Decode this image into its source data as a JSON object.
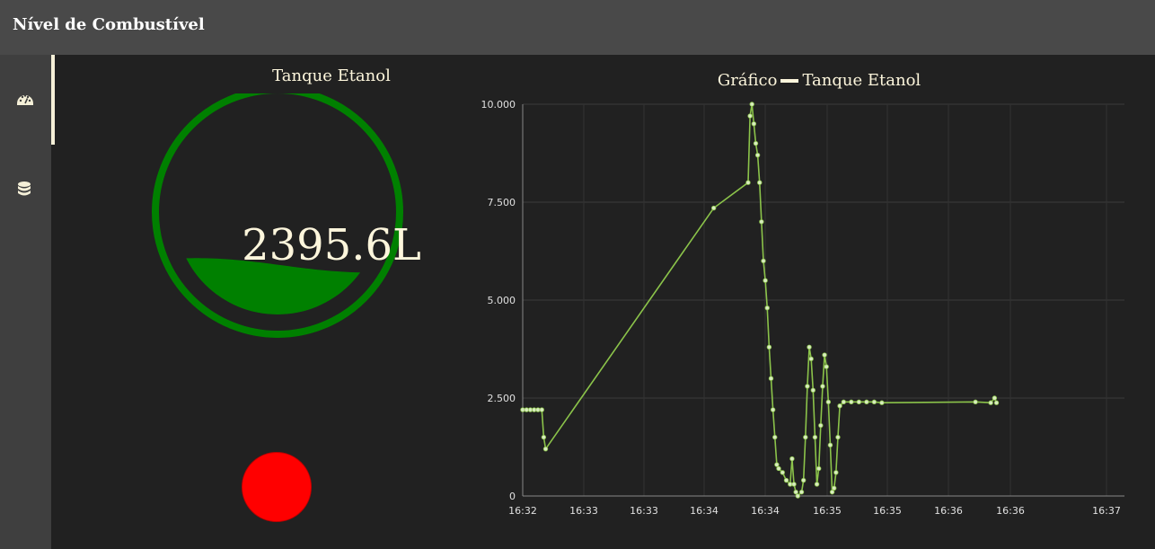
{
  "app": {
    "title": "Nível de Combustível"
  },
  "sidebar": {
    "items": [
      {
        "icon": "dashboard-gauge-icon",
        "active": true
      },
      {
        "icon": "database-icon",
        "active": false
      }
    ]
  },
  "gauge": {
    "title": "Tanque Etanol",
    "value_text": "2395.6L",
    "level_fraction": 0.24,
    "color": "#008000"
  },
  "status": {
    "color": "#ff0000"
  },
  "chart": {
    "title": "Gráfico",
    "legend": "Tanque Etanol"
  },
  "chart_data": {
    "type": "line",
    "series": [
      {
        "name": "Tanque Etanol",
        "color": "#8bc34a",
        "points": [
          [
            "16:32:00",
            2200
          ],
          [
            "16:32:02",
            2200
          ],
          [
            "16:32:04",
            2200
          ],
          [
            "16:32:06",
            2200
          ],
          [
            "16:32:08",
            2200
          ],
          [
            "16:32:10",
            2200
          ],
          [
            "16:32:11",
            1500
          ],
          [
            "16:32:12",
            1200
          ],
          [
            "16:33:40",
            7350
          ],
          [
            "16:33:58",
            8000
          ],
          [
            "16:33:59",
            9700
          ],
          [
            "16:34:00",
            10000
          ],
          [
            "16:34:01",
            9500
          ],
          [
            "16:34:02",
            9000
          ],
          [
            "16:34:03",
            8700
          ],
          [
            "16:34:04",
            8000
          ],
          [
            "16:34:05",
            7000
          ],
          [
            "16:34:06",
            6000
          ],
          [
            "16:34:07",
            5500
          ],
          [
            "16:34:08",
            4800
          ],
          [
            "16:34:09",
            3800
          ],
          [
            "16:34:10",
            3000
          ],
          [
            "16:34:11",
            2200
          ],
          [
            "16:34:12",
            1500
          ],
          [
            "16:34:13",
            800
          ],
          [
            "16:34:14",
            700
          ],
          [
            "16:34:16",
            600
          ],
          [
            "16:34:18",
            400
          ],
          [
            "16:34:20",
            300
          ],
          [
            "16:34:21",
            950
          ],
          [
            "16:34:22",
            300
          ],
          [
            "16:34:23",
            100
          ],
          [
            "16:34:24",
            0
          ],
          [
            "16:34:26",
            100
          ],
          [
            "16:34:27",
            400
          ],
          [
            "16:34:28",
            1500
          ],
          [
            "16:34:29",
            2800
          ],
          [
            "16:34:30",
            3800
          ],
          [
            "16:34:31",
            3500
          ],
          [
            "16:34:32",
            2700
          ],
          [
            "16:34:33",
            1500
          ],
          [
            "16:34:34",
            300
          ],
          [
            "16:34:35",
            700
          ],
          [
            "16:34:36",
            1800
          ],
          [
            "16:34:37",
            2800
          ],
          [
            "16:34:38",
            3600
          ],
          [
            "16:34:39",
            3300
          ],
          [
            "16:34:40",
            2400
          ],
          [
            "16:34:41",
            1300
          ],
          [
            "16:34:42",
            100
          ],
          [
            "16:34:43",
            200
          ],
          [
            "16:34:44",
            600
          ],
          [
            "16:34:45",
            1500
          ],
          [
            "16:34:46",
            2300
          ],
          [
            "16:34:48",
            2400
          ],
          [
            "16:34:52",
            2400
          ],
          [
            "16:34:56",
            2400
          ],
          [
            "16:35:00",
            2400
          ],
          [
            "16:35:04",
            2400
          ],
          [
            "16:35:08",
            2380
          ],
          [
            "16:35:57",
            2400
          ],
          [
            "16:36:05",
            2380
          ],
          [
            "16:36:07",
            2500
          ],
          [
            "16:36:08",
            2380
          ]
        ]
      }
    ],
    "y_ticks": [
      "0",
      "2.500",
      "5.000",
      "7.500",
      "10.000"
    ],
    "x_ticks": [
      "16:32",
      "16:33",
      "16:33",
      "16:34",
      "16:34",
      "16:35",
      "16:35",
      "16:36",
      "16:36",
      "16:37"
    ],
    "ylim": [
      0,
      10000
    ],
    "grid": true
  }
}
